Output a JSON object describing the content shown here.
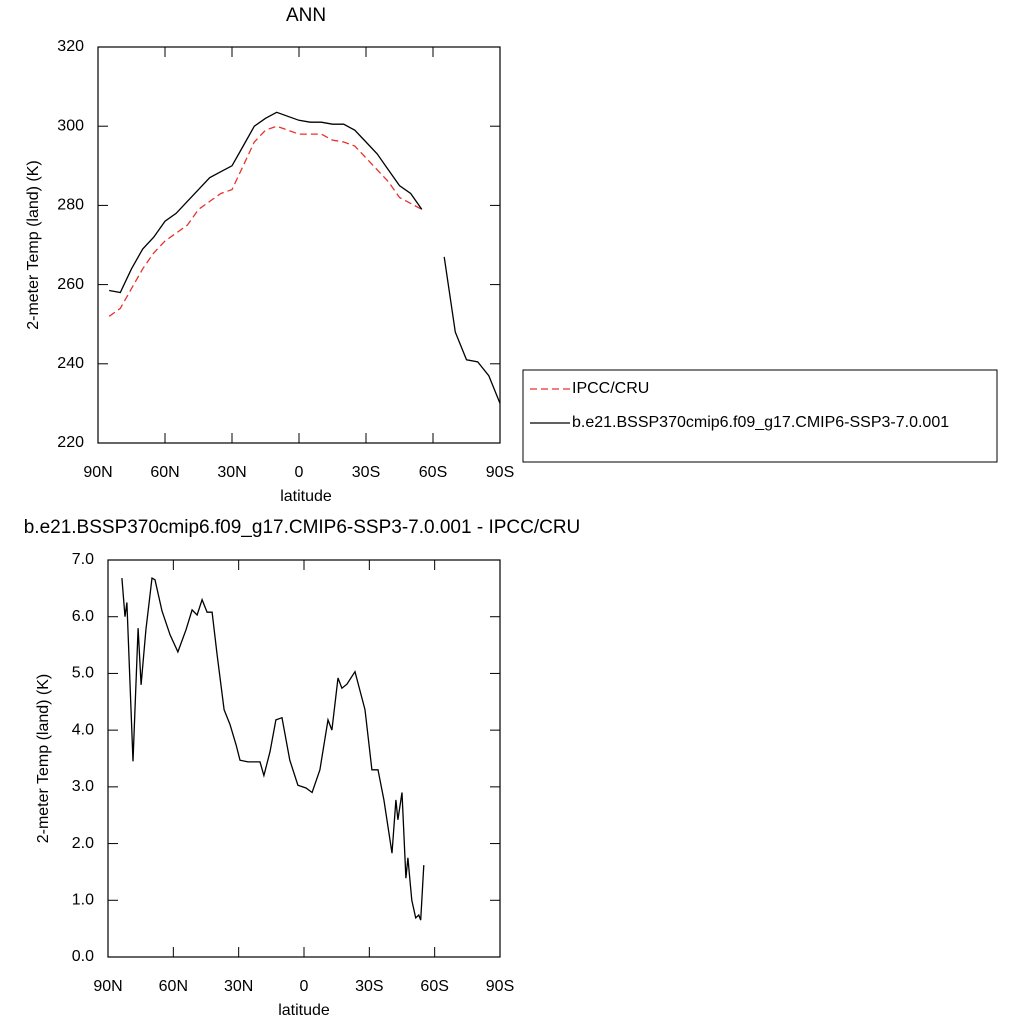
{
  "chart_data": [
    {
      "type": "line",
      "title": "ANN",
      "xlabel": "latitude",
      "ylabel": "2-meter Temp (land) (K)",
      "x": [
        90,
        85,
        80,
        75,
        70,
        65,
        60,
        55,
        50,
        45,
        40,
        35,
        30,
        25,
        20,
        15,
        10,
        5,
        0,
        -5,
        -10,
        -15,
        -20,
        -25,
        -30,
        -35,
        -40,
        -45,
        -50,
        -55,
        -60,
        -65,
        -70,
        -75,
        -80,
        -85,
        -90
      ],
      "series": [
        {
          "name": "IPCC/CRU",
          "color": "#e8312d",
          "dashed": true,
          "values": [
            null,
            252,
            254,
            259,
            264,
            268,
            271,
            273,
            275,
            279,
            281,
            283,
            284,
            290,
            296,
            299,
            300,
            299,
            298,
            298,
            298,
            296.5,
            296,
            295,
            292,
            289,
            286,
            282,
            280.5,
            279,
            null,
            null,
            null,
            null,
            null,
            null,
            null
          ]
        },
        {
          "name": "b.e21.BSSP370cmip6.f09_g17.CMIP6-SSP3-7.0.001",
          "color": "#000000",
          "dashed": false,
          "values": [
            null,
            258.5,
            258,
            264,
            269,
            272,
            276,
            278,
            281,
            284,
            287,
            288.5,
            290,
            295,
            300,
            302,
            303.5,
            302.5,
            301.5,
            301,
            301,
            300.5,
            300.5,
            299,
            296,
            293,
            289,
            285,
            283,
            279,
            null,
            267,
            248,
            241,
            240.5,
            237,
            230
          ]
        }
      ],
      "xlim": [
        90,
        -90
      ],
      "xticks": [
        {
          "value": 90,
          "label": "90N"
        },
        {
          "value": 60,
          "label": "60N"
        },
        {
          "value": 30,
          "label": "30N"
        },
        0,
        {
          "value": -30,
          "label": "30S"
        },
        {
          "value": -60,
          "label": "60S"
        },
        {
          "value": -90,
          "label": "90S"
        }
      ],
      "ylim": [
        220,
        320
      ],
      "yticks": [
        220,
        240,
        260,
        280,
        300,
        320
      ],
      "legend": "right"
    },
    {
      "type": "line",
      "title": "b.e21.BSSP370cmip6.f09_g17.CMIP6-SSP3-7.0.001 - IPCC/CRU",
      "xlabel": "latitude",
      "ylabel": "2-meter Temp (land) (K)",
      "x": [
        83.6,
        82.2,
        81.3,
        78.5,
        76.2,
        74.8,
        72.6,
        69.8,
        68.4,
        65.2,
        61.5,
        57.9,
        54.2,
        51.4,
        49.1,
        46.8,
        44.5,
        42.2,
        39.9,
        36.7,
        34,
        31.2,
        29.4,
        25.7,
        20.2,
        18.4,
        15.6,
        12.9,
        10.1,
        6.5,
        2.8,
        -0.9,
        -3.7,
        -7.3,
        -11,
        -12.8,
        -15.6,
        -17.4,
        -19.7,
        -23.4,
        -28,
        -31.2,
        -34,
        -36.7,
        -40.4,
        -42.2,
        -43.1,
        -45,
        -46.8,
        -47.7,
        -49.5,
        -51.3,
        -52.7,
        -53.6,
        -55
      ],
      "values": [
        6.68,
        6.0,
        6.25,
        3.45,
        5.8,
        4.8,
        5.77,
        6.68,
        6.65,
        6.1,
        5.68,
        5.38,
        5.77,
        6.12,
        6.03,
        6.3,
        6.08,
        6.08,
        5.33,
        4.36,
        4.1,
        3.74,
        3.47,
        3.44,
        3.44,
        3.2,
        3.62,
        4.18,
        4.22,
        3.47,
        3.03,
        2.98,
        2.9,
        3.3,
        4.18,
        4.0,
        4.92,
        4.74,
        4.81,
        5.03,
        4.36,
        3.3,
        3.3,
        2.77,
        1.83,
        2.77,
        2.42,
        2.9,
        1.39,
        1.75,
        1.0,
        0.69,
        0.74,
        0.65,
        1.62
      ],
      "color": "#000000",
      "xlim": [
        90,
        -90
      ],
      "xticks": [
        {
          "value": 90,
          "label": "90N"
        },
        {
          "value": 60,
          "label": "60N"
        },
        {
          "value": 30,
          "label": "30N"
        },
        0,
        {
          "value": -30,
          "label": "30S"
        },
        {
          "value": -60,
          "label": "60S"
        },
        {
          "value": -90,
          "label": "90S"
        }
      ],
      "ylim": [
        0,
        7
      ],
      "yticks": [
        {
          "value": 0,
          "label": "0.0"
        },
        {
          "value": 1,
          "label": "1.0"
        },
        {
          "value": 2,
          "label": "2.0"
        },
        {
          "value": 3,
          "label": "3.0"
        },
        {
          "value": 4,
          "label": "4.0"
        },
        {
          "value": 5,
          "label": "5.0"
        },
        {
          "value": 6,
          "label": "6.0"
        },
        {
          "value": 7,
          "label": "7.0"
        }
      ]
    }
  ]
}
